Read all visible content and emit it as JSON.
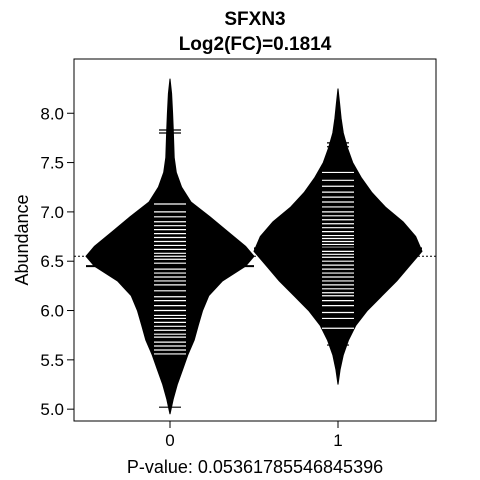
{
  "chart_data": {
    "type": "beanplot",
    "title": "SFXN3",
    "subtitle": "Log2(FC)=0.1814",
    "xlabel": "P-value: 0.0536178554684539​6",
    "ylabel": "Abundance",
    "categories": [
      "0",
      "1"
    ],
    "ylim": [
      4.88,
      8.55
    ],
    "yticks": [
      5.0,
      5.5,
      6.0,
      6.5,
      7.0,
      7.5,
      8.0
    ],
    "ytick_labels": [
      "5.0",
      "5.5",
      "6.0",
      "6.5",
      "7.0",
      "7.5",
      "8.0"
    ],
    "overall_mean": 6.55,
    "grid": false,
    "beans": [
      {
        "group": "0",
        "mean": 6.45,
        "range": [
          4.95,
          8.35
        ],
        "density": [
          [
            4.95,
            0.0
          ],
          [
            5.1,
            0.03
          ],
          [
            5.25,
            0.07
          ],
          [
            5.4,
            0.12
          ],
          [
            5.55,
            0.17
          ],
          [
            5.7,
            0.23
          ],
          [
            5.85,
            0.27
          ],
          [
            6.0,
            0.31
          ],
          [
            6.15,
            0.37
          ],
          [
            6.3,
            0.5
          ],
          [
            6.45,
            0.72
          ],
          [
            6.55,
            0.8
          ],
          [
            6.65,
            0.72
          ],
          [
            6.8,
            0.55
          ],
          [
            6.95,
            0.38
          ],
          [
            7.1,
            0.2
          ],
          [
            7.25,
            0.11
          ],
          [
            7.4,
            0.06
          ],
          [
            7.55,
            0.04
          ],
          [
            7.7,
            0.035
          ],
          [
            7.85,
            0.03
          ],
          [
            8.0,
            0.025
          ],
          [
            8.2,
            0.015
          ],
          [
            8.35,
            0.0
          ]
        ],
        "observations": [
          5.02,
          5.48,
          5.56,
          5.6,
          5.64,
          5.68,
          5.73,
          5.76,
          5.8,
          5.84,
          5.88,
          5.92,
          5.95,
          6.0,
          6.05,
          6.1,
          6.14,
          6.2,
          6.26,
          6.3,
          6.34,
          6.38,
          6.42,
          6.45,
          6.48,
          6.52,
          6.55,
          6.58,
          6.62,
          6.66,
          6.7,
          6.74,
          6.78,
          6.82,
          6.86,
          6.9,
          6.95,
          7.0,
          7.08,
          7.24,
          7.8,
          7.83
        ]
      },
      {
        "group": "1",
        "mean": 6.63,
        "range": [
          5.25,
          8.25
        ],
        "density": [
          [
            5.25,
            0.0
          ],
          [
            5.4,
            0.02
          ],
          [
            5.55,
            0.05
          ],
          [
            5.7,
            0.1
          ],
          [
            5.85,
            0.17
          ],
          [
            6.0,
            0.28
          ],
          [
            6.15,
            0.42
          ],
          [
            6.3,
            0.56
          ],
          [
            6.45,
            0.68
          ],
          [
            6.6,
            0.8
          ],
          [
            6.75,
            0.74
          ],
          [
            6.9,
            0.62
          ],
          [
            7.05,
            0.45
          ],
          [
            7.2,
            0.32
          ],
          [
            7.35,
            0.22
          ],
          [
            7.5,
            0.14
          ],
          [
            7.65,
            0.09
          ],
          [
            7.8,
            0.05
          ],
          [
            7.95,
            0.03
          ],
          [
            8.1,
            0.015
          ],
          [
            8.25,
            0.0
          ]
        ],
        "observations": [
          5.65,
          5.72,
          5.82,
          5.92,
          5.98,
          6.05,
          6.1,
          6.15,
          6.18,
          6.22,
          6.26,
          6.3,
          6.34,
          6.38,
          6.42,
          6.46,
          6.5,
          6.54,
          6.57,
          6.6,
          6.64,
          6.67,
          6.7,
          6.73,
          6.76,
          6.8,
          6.84,
          6.88,
          6.92,
          6.96,
          7.0,
          7.05,
          7.1,
          7.15,
          7.2,
          7.26,
          7.32,
          7.4,
          7.48,
          7.58,
          7.66,
          7.7
        ]
      }
    ]
  }
}
